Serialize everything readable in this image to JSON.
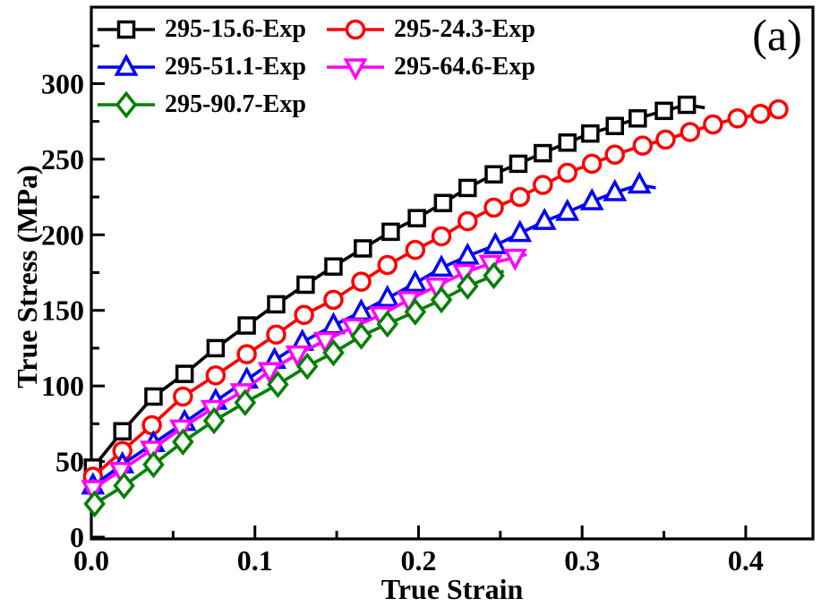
{
  "panel_label": "(a)",
  "chart_data": {
    "type": "line",
    "title": "",
    "xlabel": "True Strain",
    "ylabel": "True Stress (MPa)",
    "xlim": [
      0,
      0.441
    ],
    "ylim": [
      0,
      352
    ],
    "grid": false,
    "legend_position": "top-left inside plot, two columns, no frame",
    "x_ticks": {
      "major": [
        0.0,
        0.1,
        0.2,
        0.3,
        0.4
      ],
      "labels": [
        "0.0",
        "0.1",
        "0.2",
        "0.3",
        "0.4"
      ],
      "minor": [
        0.05,
        0.15,
        0.25,
        0.35
      ]
    },
    "y_ticks": {
      "major": [
        0,
        50,
        100,
        150,
        200,
        250,
        300
      ],
      "labels": [
        "0",
        "50",
        "100",
        "150",
        "200",
        "250",
        "300"
      ],
      "minor": [
        25,
        75,
        125,
        175,
        225,
        275,
        325
      ]
    },
    "series": [
      {
        "name": "295-15.6-Exp",
        "color": "#000000",
        "marker": "square",
        "points": [
          [
            0.001,
            46
          ],
          [
            0.019,
            70
          ],
          [
            0.038,
            93
          ],
          [
            0.057,
            108
          ],
          [
            0.076,
            125
          ],
          [
            0.095,
            140
          ],
          [
            0.113,
            154
          ],
          [
            0.131,
            167
          ],
          [
            0.148,
            179
          ],
          [
            0.166,
            191
          ],
          [
            0.183,
            202
          ],
          [
            0.199,
            211
          ],
          [
            0.215,
            221
          ],
          [
            0.23,
            231
          ],
          [
            0.246,
            240
          ],
          [
            0.261,
            247
          ],
          [
            0.276,
            254
          ],
          [
            0.291,
            261
          ],
          [
            0.305,
            267
          ],
          [
            0.32,
            272
          ],
          [
            0.334,
            277
          ],
          [
            0.35,
            282
          ],
          [
            0.364,
            286
          ]
        ],
        "tail": [
          [
            0.375,
            284
          ]
        ]
      },
      {
        "name": "295-24.3-Exp",
        "color": "#ff0000",
        "marker": "circle",
        "points": [
          [
            0.001,
            40
          ],
          [
            0.019,
            57
          ],
          [
            0.037,
            74
          ],
          [
            0.056,
            93
          ],
          [
            0.076,
            107
          ],
          [
            0.095,
            121
          ],
          [
            0.113,
            134
          ],
          [
            0.13,
            147
          ],
          [
            0.148,
            157
          ],
          [
            0.165,
            169
          ],
          [
            0.181,
            180
          ],
          [
            0.198,
            190
          ],
          [
            0.214,
            199
          ],
          [
            0.23,
            209
          ],
          [
            0.246,
            218
          ],
          [
            0.262,
            225
          ],
          [
            0.276,
            233
          ],
          [
            0.291,
            241
          ],
          [
            0.306,
            247
          ],
          [
            0.32,
            253
          ],
          [
            0.337,
            259
          ],
          [
            0.351,
            263
          ],
          [
            0.366,
            268
          ],
          [
            0.38,
            273
          ],
          [
            0.395,
            277
          ],
          [
            0.409,
            280
          ],
          [
            0.42,
            283
          ]
        ],
        "tail": [
          [
            0.426,
            283
          ]
        ]
      },
      {
        "name": "295-51.1-Exp",
        "color": "#0000ff",
        "marker": "triangle-up",
        "points": [
          [
            0.001,
            34
          ],
          [
            0.019,
            48
          ],
          [
            0.038,
            62
          ],
          [
            0.057,
            76
          ],
          [
            0.076,
            90
          ],
          [
            0.095,
            104
          ],
          [
            0.112,
            117
          ],
          [
            0.129,
            129
          ],
          [
            0.148,
            140
          ],
          [
            0.165,
            149
          ],
          [
            0.181,
            158
          ],
          [
            0.198,
            168
          ],
          [
            0.214,
            178
          ],
          [
            0.23,
            186
          ],
          [
            0.247,
            193
          ],
          [
            0.262,
            201
          ],
          [
            0.277,
            209
          ],
          [
            0.291,
            215
          ],
          [
            0.306,
            222
          ],
          [
            0.32,
            228
          ],
          [
            0.335,
            233
          ]
        ],
        "tail": [
          [
            0.345,
            231
          ]
        ]
      },
      {
        "name": "295-64.6-Exp",
        "color": "#ff00ff",
        "marker": "triangle-down",
        "points": [
          [
            0.001,
            32
          ],
          [
            0.018,
            44
          ],
          [
            0.037,
            58
          ],
          [
            0.055,
            72
          ],
          [
            0.074,
            85
          ],
          [
            0.092,
            96
          ],
          [
            0.109,
            110
          ],
          [
            0.126,
            121
          ],
          [
            0.143,
            130
          ],
          [
            0.16,
            139
          ],
          [
            0.177,
            147
          ],
          [
            0.194,
            157
          ],
          [
            0.211,
            166
          ],
          [
            0.228,
            175
          ],
          [
            0.244,
            181
          ],
          [
            0.259,
            185
          ]
        ],
        "tail": [
          [
            0.266,
            187
          ]
        ]
      },
      {
        "name": "295-90.7-Exp",
        "color": "#008000",
        "marker": "diamond",
        "points": [
          [
            0.002,
            22
          ],
          [
            0.02,
            34
          ],
          [
            0.038,
            48
          ],
          [
            0.056,
            63
          ],
          [
            0.075,
            77
          ],
          [
            0.094,
            89
          ],
          [
            0.114,
            101
          ],
          [
            0.132,
            113
          ],
          [
            0.148,
            122
          ],
          [
            0.165,
            133
          ],
          [
            0.181,
            141
          ],
          [
            0.198,
            149
          ],
          [
            0.214,
            157
          ],
          [
            0.23,
            166
          ],
          [
            0.246,
            173
          ]
        ],
        "tail": [
          [
            0.252,
            176
          ]
        ]
      }
    ]
  }
}
